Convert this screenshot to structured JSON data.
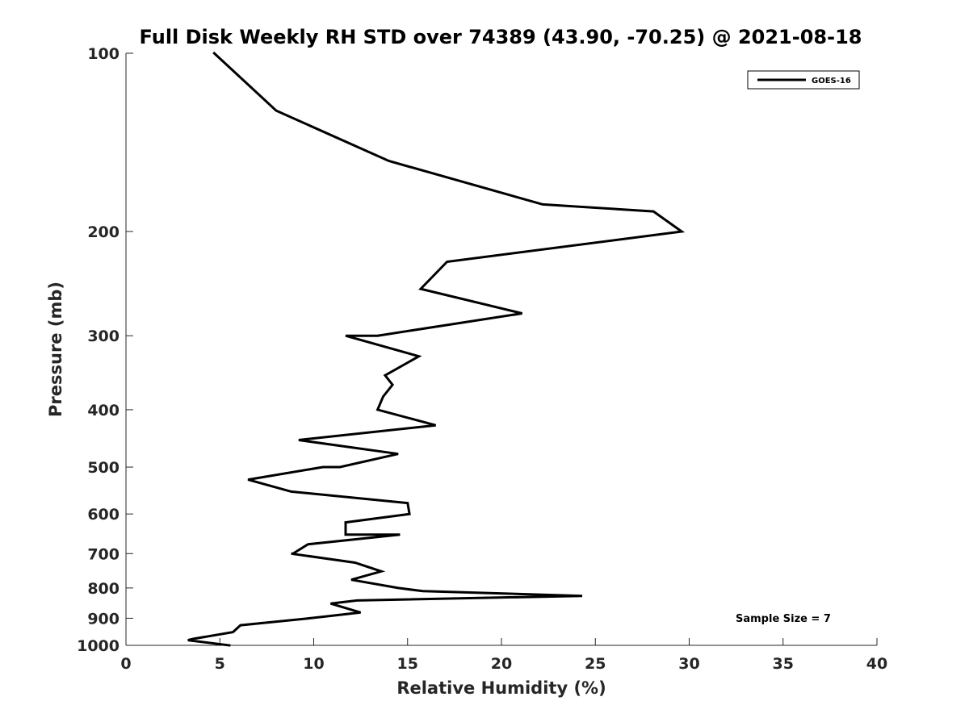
{
  "chart_data": {
    "type": "line",
    "title": "Full Disk Weekly RH STD over 74389 (43.90, -70.25) @ 2021-08-18",
    "xlabel": "Relative Humidity (%)",
    "ylabel": "Pressure (mb)",
    "xlim": [
      0,
      40
    ],
    "ylim": [
      100,
      1000
    ],
    "y_scale": "log",
    "y_reversed": true,
    "x_ticks": [
      "0",
      "5",
      "10",
      "15",
      "20",
      "25",
      "30",
      "35",
      "40"
    ],
    "y_ticks": [
      "100",
      "200",
      "300",
      "400",
      "500",
      "600",
      "700",
      "800",
      "900",
      "1000"
    ],
    "grid": false,
    "legend_position": "top-right",
    "annotation": "Sample Size = 7",
    "series": [
      {
        "name": "GOES-16",
        "color": "#000000",
        "points": [
          [
            4.7,
            100
          ],
          [
            8.0,
            125
          ],
          [
            14.0,
            152
          ],
          [
            22.2,
            180
          ],
          [
            28.1,
            185
          ],
          [
            29.6,
            200
          ],
          [
            17.1,
            225
          ],
          [
            15.7,
            250
          ],
          [
            21.1,
            275
          ],
          [
            13.4,
            300
          ],
          [
            11.7,
            300
          ],
          [
            15.6,
            325
          ],
          [
            13.8,
            350
          ],
          [
            14.2,
            363
          ],
          [
            13.7,
            380
          ],
          [
            13.4,
            400
          ],
          [
            16.5,
            425
          ],
          [
            9.2,
            450
          ],
          [
            14.5,
            475
          ],
          [
            11.4,
            500
          ],
          [
            10.5,
            500
          ],
          [
            6.5,
            525
          ],
          [
            8.8,
            550
          ],
          [
            15.0,
            575
          ],
          [
            15.1,
            600
          ],
          [
            11.7,
            620
          ],
          [
            11.7,
            650
          ],
          [
            14.6,
            650
          ],
          [
            9.7,
            675
          ],
          [
            8.9,
            700
          ],
          [
            8.8,
            700
          ],
          [
            12.2,
            725
          ],
          [
            13.6,
            750
          ],
          [
            12.0,
            775
          ],
          [
            14.5,
            800
          ],
          [
            15.8,
            810
          ],
          [
            24.3,
            825
          ],
          [
            12.3,
            840
          ],
          [
            10.9,
            850
          ],
          [
            12.5,
            880
          ],
          [
            9.8,
            900
          ],
          [
            6.1,
            925
          ],
          [
            5.7,
            950
          ],
          [
            3.6,
            975
          ],
          [
            3.3,
            980
          ],
          [
            5.5,
            1000
          ]
        ]
      }
    ]
  }
}
